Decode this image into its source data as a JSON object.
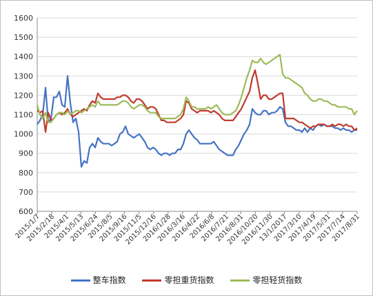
{
  "chart_data": {
    "type": "line",
    "title": "",
    "xlabel": "",
    "ylabel": "",
    "ylim": [
      600,
      1600
    ],
    "yticks": [
      600,
      700,
      800,
      900,
      1000,
      1100,
      1200,
      1300,
      1400,
      1500,
      1600
    ],
    "grid": "horizontal",
    "legend_position": "bottom",
    "x_tick_labels": [
      "2015/1/7",
      "2015/2/18",
      "2015/4/1",
      "2015/5/13",
      "2015/6/24",
      "2015/8/5",
      "2015/9/16",
      "2015/11/5",
      "2015/12/16",
      "2016/1/28",
      "2016/3/16",
      "2016/4/22",
      "2016/6/8",
      "2016/7/21",
      "2016/8/31",
      "2016/10/20",
      "2016/11/30",
      "13/1/2017",
      "2017/3/10",
      "2017/4/19",
      "2017/5/31",
      "2017/7/14",
      "2017/8/31"
    ],
    "series": [
      {
        "name": "整车指数",
        "color": "#4472c4",
        "values": [
          1050,
          1070,
          1100,
          1240,
          1060,
          1080,
          1190,
          1190,
          1220,
          1150,
          1140,
          1300,
          1160,
          1060,
          1080,
          1010,
          830,
          860,
          850,
          930,
          950,
          930,
          980,
          960,
          950,
          950,
          950,
          940,
          950,
          960,
          1000,
          1010,
          1040,
          1000,
          990,
          980,
          990,
          1000,
          980,
          960,
          930,
          920,
          930,
          920,
          900,
          890,
          900,
          900,
          890,
          900,
          900,
          920,
          920,
          950,
          1000,
          1020,
          1000,
          980,
          970,
          950,
          950,
          950,
          950,
          950,
          960,
          940,
          920,
          910,
          900,
          890,
          890,
          890,
          920,
          940,
          970,
          1000,
          1020,
          1050,
          1130,
          1110,
          1100,
          1100,
          1120,
          1120,
          1100,
          1110,
          1110,
          1120,
          1140,
          1130,
          1060,
          1040,
          1040,
          1030,
          1020,
          1020,
          1010,
          1030,
          1010,
          1030,
          1020,
          1040,
          1050,
          1040,
          1050,
          1040,
          1040,
          1040,
          1030,
          1030,
          1020,
          1030,
          1020,
          1020,
          1010,
          1020,
          1020
        ]
      },
      {
        "name": "零担重货指数",
        "color": "#c0392b",
        "values": [
          1120,
          1110,
          1120,
          1010,
          1110,
          1070,
          1080,
          1100,
          1110,
          1100,
          1110,
          1130,
          1100,
          1090,
          1100,
          1110,
          1120,
          1130,
          1120,
          1150,
          1170,
          1160,
          1210,
          1190,
          1180,
          1180,
          1180,
          1180,
          1180,
          1190,
          1190,
          1200,
          1200,
          1190,
          1170,
          1160,
          1180,
          1180,
          1170,
          1150,
          1130,
          1140,
          1140,
          1130,
          1100,
          1070,
          1070,
          1060,
          1060,
          1060,
          1060,
          1070,
          1080,
          1100,
          1170,
          1160,
          1130,
          1120,
          1110,
          1120,
          1120,
          1120,
          1120,
          1110,
          1120,
          1110,
          1100,
          1080,
          1070,
          1070,
          1070,
          1070,
          1090,
          1110,
          1130,
          1160,
          1190,
          1220,
          1290,
          1330,
          1260,
          1180,
          1200,
          1200,
          1180,
          1180,
          1190,
          1200,
          1210,
          1210,
          1080,
          1080,
          1080,
          1080,
          1070,
          1060,
          1060,
          1050,
          1040,
          1030,
          1040,
          1040,
          1050,
          1050,
          1050,
          1040,
          1040,
          1050,
          1040,
          1050,
          1050,
          1040,
          1050,
          1040,
          1040,
          1020,
          1030
        ]
      },
      {
        "name": "零担轻货指数",
        "color": "#9bbb59",
        "values": [
          1150,
          1100,
          1080,
          1110,
          1060,
          1060,
          1080,
          1100,
          1110,
          1110,
          1100,
          1120,
          1100,
          1110,
          1120,
          1120,
          1110,
          1120,
          1130,
          1140,
          1150,
          1140,
          1170,
          1150,
          1150,
          1150,
          1150,
          1150,
          1150,
          1150,
          1160,
          1170,
          1170,
          1160,
          1140,
          1130,
          1140,
          1150,
          1150,
          1140,
          1120,
          1110,
          1110,
          1110,
          1090,
          1080,
          1080,
          1080,
          1080,
          1080,
          1080,
          1090,
          1100,
          1130,
          1190,
          1170,
          1140,
          1140,
          1130,
          1130,
          1130,
          1130,
          1140,
          1130,
          1140,
          1150,
          1130,
          1110,
          1100,
          1100,
          1100,
          1110,
          1120,
          1150,
          1190,
          1240,
          1290,
          1330,
          1380,
          1370,
          1370,
          1390,
          1370,
          1360,
          1370,
          1380,
          1390,
          1400,
          1410,
          1310,
          1290,
          1290,
          1280,
          1270,
          1260,
          1250,
          1240,
          1210,
          1200,
          1180,
          1170,
          1170,
          1180,
          1180,
          1170,
          1170,
          1160,
          1150,
          1150,
          1140,
          1140,
          1140,
          1140,
          1130,
          1130,
          1100,
          1120
        ]
      }
    ]
  }
}
